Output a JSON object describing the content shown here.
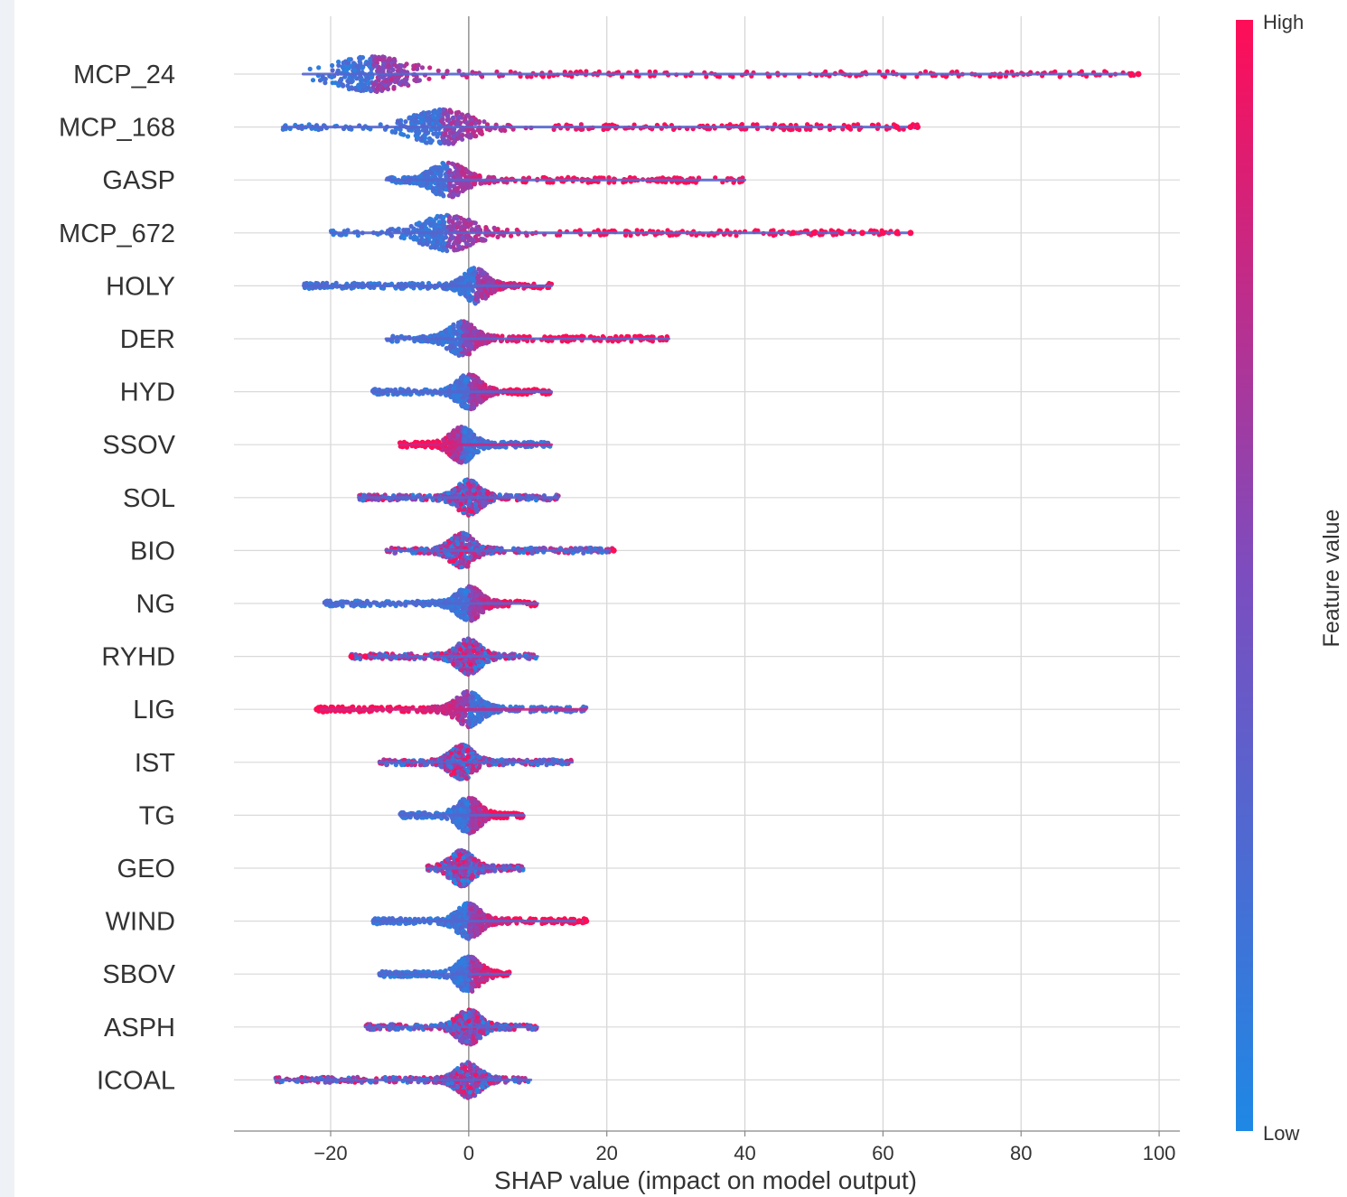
{
  "chart_data": {
    "type": "scatter",
    "subtype": "shap-beeswarm",
    "xlabel": "SHAP value (impact on model output)",
    "xlim": [
      -34,
      103
    ],
    "xticks": [
      -20,
      0,
      20,
      40,
      60,
      80,
      100
    ],
    "xtick_labels": [
      "−20",
      "0",
      "20",
      "40",
      "60",
      "80",
      "100"
    ],
    "grid": true,
    "colorbar": {
      "title": "Feature value",
      "high_label": "High",
      "low_label": "Low",
      "low_color": "#1e88e5",
      "mid_color": "#7c4dbf",
      "high_color": "#ff0d57"
    },
    "features": [
      {
        "name": "MCP_24",
        "min": -24,
        "max": 97,
        "peak": -14,
        "high_side": "right",
        "outliers": [
          96,
          97
        ]
      },
      {
        "name": "MCP_168",
        "min": -27,
        "max": 65,
        "peak": -4,
        "high_side": "right",
        "outliers": [
          55,
          62,
          64,
          65
        ]
      },
      {
        "name": "GASP",
        "min": -12,
        "max": 40,
        "peak": -3,
        "high_side": "right",
        "outliers": []
      },
      {
        "name": "MCP_672",
        "min": -20,
        "max": 64,
        "peak": -3,
        "high_side": "right",
        "outliers": [
          47,
          50,
          54,
          57,
          60,
          62,
          64
        ]
      },
      {
        "name": "HOLY",
        "min": -24,
        "max": 12,
        "peak": 1,
        "high_side": "right",
        "outliers": []
      },
      {
        "name": "DER",
        "min": -12,
        "max": 29,
        "peak": -1,
        "high_side": "right",
        "outliers": []
      },
      {
        "name": "HYD",
        "min": -14,
        "max": 12,
        "peak": 0,
        "high_side": "right",
        "outliers": []
      },
      {
        "name": "SSOV",
        "min": -10,
        "max": 12,
        "peak": -1,
        "high_side": "left",
        "outliers": []
      },
      {
        "name": "SOL",
        "min": -16,
        "max": 13,
        "peak": 0,
        "high_side": "mixed",
        "outliers": []
      },
      {
        "name": "BIO",
        "min": -12,
        "max": 21,
        "peak": -1,
        "high_side": "mixed",
        "outliers": [
          21
        ]
      },
      {
        "name": "NG",
        "min": -21,
        "max": 10,
        "peak": 0,
        "high_side": "right",
        "outliers": []
      },
      {
        "name": "RYHD",
        "min": -17,
        "max": 10,
        "peak": 0,
        "high_side": "mixed",
        "outliers": [
          -17,
          -15
        ]
      },
      {
        "name": "LIG",
        "min": -22,
        "max": 17,
        "peak": 0,
        "high_side": "left",
        "outliers": [
          -22
        ]
      },
      {
        "name": "IST",
        "min": -13,
        "max": 15,
        "peak": -1,
        "high_side": "mixed",
        "outliers": []
      },
      {
        "name": "TG",
        "min": -10,
        "max": 8,
        "peak": 0,
        "high_side": "right",
        "outliers": []
      },
      {
        "name": "GEO",
        "min": -6,
        "max": 8,
        "peak": -1,
        "high_side": "mixed",
        "outliers": []
      },
      {
        "name": "WIND",
        "min": -14,
        "max": 17,
        "peak": 0,
        "high_side": "right",
        "outliers": [
          16,
          17
        ]
      },
      {
        "name": "SBOV",
        "min": -13,
        "max": 6,
        "peak": 0,
        "high_side": "right",
        "outliers": []
      },
      {
        "name": "ASPH",
        "min": -15,
        "max": 10,
        "peak": 0,
        "high_side": "mixed",
        "outliers": []
      },
      {
        "name": "ICOAL",
        "min": -28,
        "max": 9,
        "peak": 0,
        "high_side": "mixed",
        "outliers": []
      }
    ]
  }
}
